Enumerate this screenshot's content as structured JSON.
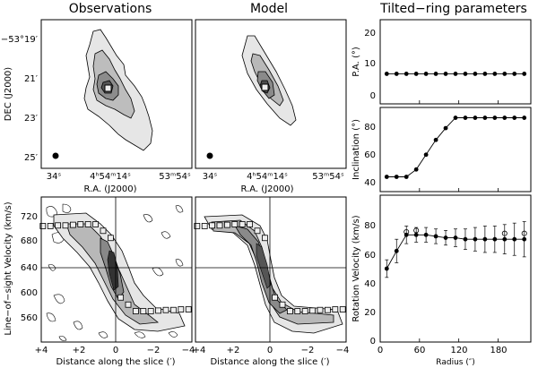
{
  "titles": {
    "observations": "Observations",
    "model": "Model",
    "tilted": "Tilted−ring parameters"
  },
  "map_axes": {
    "dec_label": "DEC (J2000)",
    "ra_label": "R.A. (J2000)",
    "dec_ticks": [
      "−53°19′",
      "21′",
      "23′",
      "25′"
    ],
    "ra_ticks_obs": [
      "34ˢ",
      "4ʰ54ᵐ14ˢ",
      "53ᵐ54ˢ"
    ],
    "ra_ticks_model": [
      "34ˢ",
      "4ʰ54ᵐ14ˢ",
      "53ᵐ54ˢ"
    ]
  },
  "pv_axes": {
    "ylabel": "Line−of−sight Velocity (km/s)",
    "xlabel": "Distance along the slice (′)",
    "yticks": [
      "720",
      "680",
      "640",
      "600",
      "560"
    ],
    "xticks": [
      "+4",
      "+2",
      "0",
      "−2",
      "−4"
    ],
    "xticks_model": [
      "+4",
      "+2",
      "0",
      "−2",
      "−4"
    ]
  },
  "colors": {
    "contour_fill_light": "#e4e4e4",
    "contour_fill_mid": "#b8b8b8",
    "contour_fill_dark": "#8a8a8a",
    "contour_fill_darkest": "#505050",
    "marker_face": "#eeeeee"
  },
  "chart_data": [
    {
      "type": "scatter",
      "panel": "pa",
      "xlabel": "",
      "ylabel": "P.A. (°)",
      "xlim": [
        0,
        230
      ],
      "yticks": [
        "20",
        "10",
        "0"
      ],
      "x": [
        10,
        25,
        40,
        55,
        70,
        85,
        100,
        115,
        130,
        145,
        160,
        175,
        190,
        205,
        220
      ],
      "y": [
        10,
        10,
        10,
        10,
        10,
        10,
        10,
        10,
        10,
        10,
        10,
        10,
        10,
        10,
        10
      ],
      "ylim": [
        0,
        28
      ]
    },
    {
      "type": "line",
      "panel": "inclination",
      "xlabel": "",
      "ylabel": "Inclination (°)",
      "xlim": [
        0,
        230
      ],
      "yticks": [
        "80",
        "60",
        "40"
      ],
      "x": [
        10,
        25,
        40,
        55,
        70,
        85,
        100,
        115,
        130,
        145,
        160,
        175,
        190,
        205,
        220
      ],
      "y": [
        45,
        45,
        45,
        50,
        60,
        70,
        78,
        85,
        85,
        85,
        85,
        85,
        85,
        85,
        85
      ],
      "ylim": [
        35,
        92
      ]
    },
    {
      "type": "line",
      "panel": "rotation",
      "xlabel": "Radius (″)",
      "ylabel": "Rotation Velocity (km/s)",
      "xlim": [
        0,
        230
      ],
      "ylim": [
        0,
        100
      ],
      "yticks": [
        "80",
        "60",
        "40",
        "20",
        "0"
      ],
      "xticks": [
        "0",
        "60",
        "120",
        "180"
      ],
      "x": [
        10,
        25,
        40,
        55,
        70,
        85,
        100,
        115,
        130,
        145,
        160,
        175,
        190,
        205,
        220
      ],
      "y": [
        50,
        62,
        73,
        73,
        73,
        72,
        71,
        71,
        70,
        70,
        70,
        70,
        70,
        70,
        70
      ],
      "err": [
        6,
        8,
        6,
        5,
        5,
        5,
        5,
        6,
        7,
        8,
        9,
        9,
        10,
        11,
        12
      ],
      "open_x": [
        40,
        55,
        190,
        220
      ],
      "open_y": [
        75,
        76,
        74,
        74
      ]
    }
  ]
}
